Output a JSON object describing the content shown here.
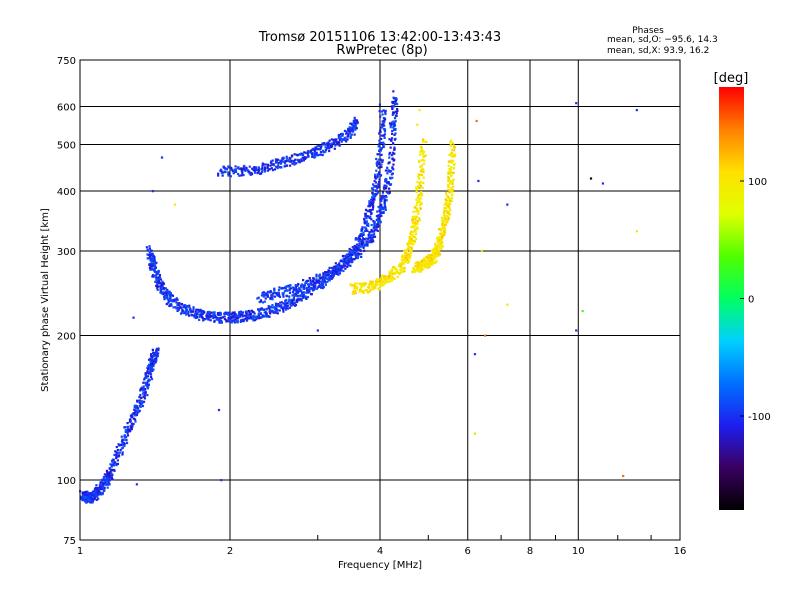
{
  "chart_data": {
    "type": "scatter",
    "title": "Tromsø 20151106 13:42:00-13:43:43",
    "subtitle": "RwPretec (8p)",
    "xlabel": "Frequency [MHz]",
    "ylabel": "Stationary phase Virtual Height [km]",
    "x_scale": "log",
    "y_scale": "log",
    "xlim": [
      1,
      16
    ],
    "ylim": [
      75,
      750
    ],
    "x_ticks": [
      1,
      2,
      4,
      6,
      8,
      10,
      16
    ],
    "y_ticks": [
      75,
      100,
      200,
      300,
      400,
      500,
      600,
      750
    ],
    "grid": true,
    "phase_stats": {
      "heading": "Phases",
      "o_line": "mean, sd,O: −95.6, 14.3",
      "x_line": "mean, sd,X:  93.9, 16.2"
    },
    "colorbar": {
      "label": "[deg]",
      "range": [
        -180,
        180
      ],
      "ticks": [
        100,
        0,
        -100
      ],
      "colors": [
        "#000000",
        "#3a0060",
        "#1e1ef0",
        "#0070ff",
        "#00d0ff",
        "#00ff60",
        "#50ff00",
        "#e0ff00",
        "#ffe000",
        "#ff8000",
        "#ff0000"
      ]
    },
    "traces": [
      {
        "name_hint": "o-mode low layer",
        "phase": -100,
        "x": [
          1.01,
          1.03,
          1.05,
          1.07,
          1.1,
          1.13,
          1.15,
          1.2,
          1.25,
          1.3,
          1.35,
          1.38,
          1.4,
          1.42
        ],
        "y": [
          93,
          92,
          92,
          93,
          96,
          100,
          103,
          115,
          128,
          140,
          155,
          168,
          178,
          185
        ]
      },
      {
        "name_hint": "o-mode F trace",
        "phase": -100,
        "x": [
          1.38,
          1.4,
          1.43,
          1.47,
          1.52,
          1.6,
          1.7,
          1.8,
          1.9,
          2.0,
          2.1,
          2.2,
          2.35,
          2.5,
          2.65,
          2.8,
          3.0,
          3.2,
          3.4,
          3.6,
          3.75,
          3.85,
          3.95,
          4.02,
          4.06
        ],
        "y": [
          300,
          280,
          262,
          248,
          237,
          228,
          222,
          219,
          218,
          218,
          219,
          220,
          223,
          228,
          235,
          243,
          255,
          268,
          285,
          310,
          340,
          375,
          420,
          500,
          600
        ]
      },
      {
        "name_hint": "o-mode F inner trace",
        "phase": -100,
        "x": [
          2.3,
          2.5,
          2.7,
          2.9,
          3.1,
          3.3,
          3.5,
          3.7,
          3.85,
          3.98,
          4.1,
          4.2,
          4.25,
          4.3
        ],
        "y": [
          240,
          245,
          250,
          258,
          266,
          276,
          290,
          305,
          325,
          350,
          390,
          450,
          550,
          640
        ]
      },
      {
        "name_hint": "o-mode upper trace",
        "phase": -100,
        "x": [
          1.9,
          2.1,
          2.3,
          2.5,
          2.7,
          2.9,
          3.1,
          3.3,
          3.5,
          3.6
        ],
        "y": [
          440,
          440,
          446,
          456,
          466,
          478,
          492,
          508,
          530,
          560
        ]
      },
      {
        "name_hint": "x-mode F trace",
        "phase": 100,
        "x": [
          3.5,
          3.8,
          4.0,
          4.2,
          4.4,
          4.55,
          4.65,
          4.75,
          4.82,
          4.9
        ],
        "y": [
          250,
          252,
          258,
          266,
          278,
          295,
          320,
          360,
          420,
          510
        ]
      },
      {
        "name_hint": "x-mode outer trace",
        "phase": 100,
        "x": [
          4.7,
          4.85,
          5.0,
          5.1,
          5.2,
          5.3,
          5.4,
          5.5,
          5.55,
          5.6
        ],
        "y": [
          275,
          280,
          285,
          290,
          300,
          320,
          345,
          380,
          430,
          510
        ]
      }
    ],
    "scatter_points": [
      {
        "x": 1.28,
        "y": 218,
        "phase": -100
      },
      {
        "x": 1.46,
        "y": 470,
        "phase": -100
      },
      {
        "x": 1.4,
        "y": 400,
        "phase": -100
      },
      {
        "x": 1.9,
        "y": 140,
        "phase": -100
      },
      {
        "x": 1.92,
        "y": 100,
        "phase": -100
      },
      {
        "x": 3.0,
        "y": 205,
        "phase": -100
      },
      {
        "x": 4.75,
        "y": 550,
        "phase": 100
      },
      {
        "x": 6.25,
        "y": 560,
        "phase": 150
      },
      {
        "x": 6.3,
        "y": 420,
        "phase": -100
      },
      {
        "x": 6.4,
        "y": 300,
        "phase": 60
      },
      {
        "x": 6.5,
        "y": 200,
        "phase": 150
      },
      {
        "x": 7.2,
        "y": 375,
        "phase": -100
      },
      {
        "x": 7.2,
        "y": 232,
        "phase": 100
      },
      {
        "x": 6.2,
        "y": 183,
        "phase": -100
      },
      {
        "x": 6.2,
        "y": 125,
        "phase": 60
      },
      {
        "x": 9.9,
        "y": 610,
        "phase": -100
      },
      {
        "x": 9.9,
        "y": 205,
        "phase": -100
      },
      {
        "x": 10.2,
        "y": 225,
        "phase": 30
      },
      {
        "x": 10.6,
        "y": 425,
        "phase": -170
      },
      {
        "x": 11.2,
        "y": 415,
        "phase": -100
      },
      {
        "x": 13.1,
        "y": 590,
        "phase": -100
      },
      {
        "x": 13.1,
        "y": 330,
        "phase": 100
      },
      {
        "x": 12.3,
        "y": 102,
        "phase": 150
      },
      {
        "x": 1.3,
        "y": 98,
        "phase": -100
      },
      {
        "x": 1.55,
        "y": 375,
        "phase": 100
      },
      {
        "x": 4.8,
        "y": 590,
        "phase": 100
      }
    ]
  }
}
